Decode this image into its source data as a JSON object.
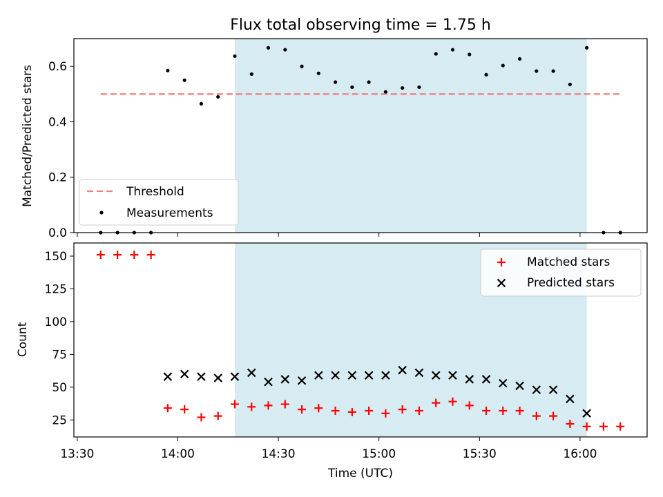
{
  "chart_data": {
    "type": "scatter",
    "title": "Flux total observing time = 1.75 h",
    "xlabel": "Time (UTC)",
    "x_ticks": [
      "13:30",
      "14:00",
      "14:30",
      "15:00",
      "15:30",
      "16:00"
    ],
    "x_range": [
      "13:29",
      "16:20"
    ],
    "shaded_span": [
      "14:17",
      "16:02"
    ],
    "shade_color": "#add8e6",
    "panels": [
      {
        "ylabel": "Matched/Predicted stars",
        "ylim": [
          0,
          0.7
        ],
        "yticks": [
          "0.0",
          "0.2",
          "0.4",
          "0.6"
        ],
        "legend_position": "lower-left",
        "threshold": {
          "name": "Threshold",
          "value": 0.5,
          "x_range": [
            "13:37",
            "16:12"
          ],
          "color": "#f08080"
        },
        "series": [
          {
            "name": "Measurements",
            "marker": "dot",
            "color": "#000000",
            "x": [
              "13:37",
              "13:42",
              "13:47",
              "13:52",
              "13:57",
              "14:02",
              "14:07",
              "14:12",
              "14:17",
              "14:22",
              "14:27",
              "14:32",
              "14:37",
              "14:42",
              "14:47",
              "14:52",
              "14:57",
              "15:02",
              "15:07",
              "15:12",
              "15:17",
              "15:22",
              "15:27",
              "15:32",
              "15:37",
              "15:42",
              "15:47",
              "15:52",
              "15:57",
              "16:02",
              "16:07",
              "16:12"
            ],
            "y": [
              0.0,
              0.0,
              0.0,
              0.0,
              0.585,
              0.55,
              0.465,
              0.49,
              0.637,
              0.572,
              0.667,
              0.66,
              0.6,
              0.575,
              0.543,
              0.525,
              0.543,
              0.508,
              0.522,
              0.525,
              0.645,
              0.66,
              0.643,
              0.57,
              0.603,
              0.627,
              0.583,
              0.583,
              0.535,
              0.667,
              0.0,
              0.0
            ]
          }
        ]
      },
      {
        "ylabel": "Count",
        "ylim": [
          12,
          160
        ],
        "yticks": [
          "25",
          "50",
          "75",
          "100",
          "125",
          "150"
        ],
        "legend_position": "upper-right",
        "series": [
          {
            "name": "Matched stars",
            "marker": "plus",
            "color": "#ff0000",
            "x": [
              "13:37",
              "13:42",
              "13:47",
              "13:52",
              "13:57",
              "14:02",
              "14:07",
              "14:12",
              "14:17",
              "14:22",
              "14:27",
              "14:32",
              "14:37",
              "14:42",
              "14:47",
              "14:52",
              "14:57",
              "15:02",
              "15:07",
              "15:12",
              "15:17",
              "15:22",
              "15:27",
              "15:32",
              "15:37",
              "15:42",
              "15:47",
              "15:52",
              "15:57",
              "16:02",
              "16:07",
              "16:12"
            ],
            "y": [
              151,
              151,
              151,
              151,
              34,
              33,
              27,
              28,
              37,
              35,
              36,
              37,
              33,
              34,
              32,
              31,
              32,
              30,
              33,
              32,
              38,
              39,
              36,
              32,
              32,
              32,
              28,
              28,
              22,
              20,
              20,
              20
            ]
          },
          {
            "name": "Predicted stars",
            "marker": "x",
            "color": "#000000",
            "x": [
              "13:57",
              "14:02",
              "14:07",
              "14:12",
              "14:17",
              "14:22",
              "14:27",
              "14:32",
              "14:37",
              "14:42",
              "14:47",
              "14:52",
              "14:57",
              "15:02",
              "15:07",
              "15:12",
              "15:17",
              "15:22",
              "15:27",
              "15:32",
              "15:37",
              "15:42",
              "15:47",
              "15:52",
              "15:57",
              "16:02"
            ],
            "y": [
              58,
              60,
              58,
              57,
              58,
              61,
              54,
              56,
              55,
              59,
              59,
              59,
              59,
              59,
              63,
              61,
              59,
              59,
              56,
              56,
              53,
              51,
              48,
              48,
              41,
              30
            ]
          }
        ]
      }
    ]
  }
}
